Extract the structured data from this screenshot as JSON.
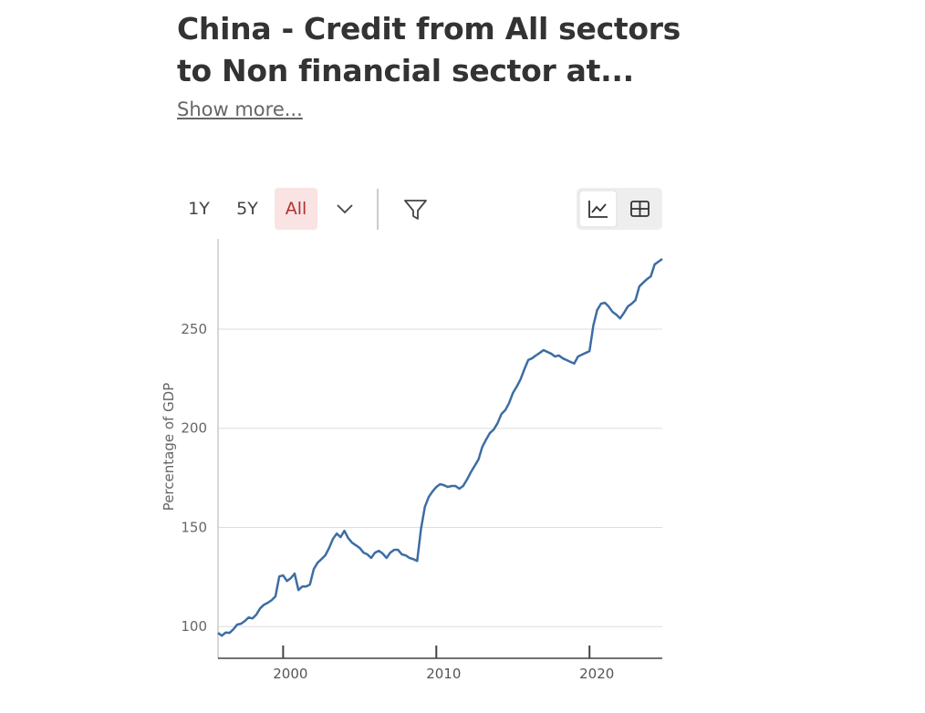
{
  "header": {
    "title_lines": [
      "China - Credit from All sectors",
      "to Non financial sector at..."
    ],
    "show_more": "Show more..."
  },
  "controls": {
    "ranges": [
      "1Y",
      "5Y",
      "All"
    ],
    "active_range": 2
  },
  "chart_data": {
    "type": "line",
    "y_label": "Percentage of GDP",
    "color": "#3d6da4",
    "grid": true,
    "xlim": [
      1995.75,
      2024.75
    ],
    "xticks": [
      2000,
      2010,
      2020
    ],
    "ylim": [
      84,
      295.5
    ],
    "yticks": [
      100,
      150,
      200,
      250
    ],
    "x": [
      1995.75,
      1996,
      1996.25,
      1996.5,
      1996.75,
      1997,
      1997.25,
      1997.5,
      1997.75,
      1998,
      1998.25,
      1998.5,
      1998.75,
      1999,
      1999.25,
      1999.5,
      1999.75,
      2000,
      2000.25,
      2000.5,
      2000.75,
      2001,
      2001.25,
      2001.5,
      2001.75,
      2002,
      2002.25,
      2002.5,
      2002.75,
      2003,
      2003.25,
      2003.5,
      2003.75,
      2004,
      2004.25,
      2004.5,
      2004.75,
      2005,
      2005.25,
      2005.5,
      2005.75,
      2006,
      2006.25,
      2006.5,
      2006.75,
      2007,
      2007.25,
      2007.5,
      2007.75,
      2008,
      2008.25,
      2008.5,
      2008.75,
      2009,
      2009.25,
      2009.5,
      2009.75,
      2010,
      2010.25,
      2010.5,
      2010.75,
      2011,
      2011.25,
      2011.5,
      2011.75,
      2012,
      2012.25,
      2012.5,
      2012.75,
      2013,
      2013.25,
      2013.5,
      2013.75,
      2014,
      2014.25,
      2014.5,
      2014.75,
      2015,
      2015.25,
      2015.5,
      2015.75,
      2016,
      2016.25,
      2016.5,
      2016.75,
      2017,
      2017.25,
      2017.5,
      2017.75,
      2018,
      2018.25,
      2018.5,
      2018.75,
      2019,
      2019.25,
      2019.5,
      2019.75,
      2020,
      2020.25,
      2020.5,
      2020.75,
      2021,
      2021.25,
      2021.5,
      2021.75,
      2022,
      2022.25,
      2022.5,
      2022.75,
      2023,
      2023.25,
      2023.5,
      2023.75,
      2024,
      2024.25,
      2024.5,
      2024.75
    ],
    "values": [
      96.8,
      95.4,
      97,
      96.8,
      98.6,
      101,
      101.4,
      102.8,
      104.6,
      104.1,
      106,
      109.2,
      111,
      112,
      113.3,
      115.2,
      125.3,
      125.8,
      123,
      124.4,
      126.7,
      118.4,
      120.2,
      120.2,
      121.2,
      129,
      132.2,
      134,
      135.9,
      139.6,
      144.2,
      146.9,
      145.1,
      148.3,
      144.6,
      142.3,
      141,
      139.6,
      137.3,
      136.4,
      134.6,
      137.3,
      138.2,
      136.8,
      134.6,
      137.3,
      138.7,
      138.7,
      136.4,
      135.9,
      134.6,
      134,
      133.1,
      149.2,
      160.3,
      165.3,
      168.1,
      170.4,
      171.8,
      171.3,
      170.4,
      170.9,
      170.9,
      169.5,
      170.9,
      174.1,
      177.8,
      181,
      184.2,
      190.6,
      194.3,
      197.6,
      199.4,
      202.6,
      207.2,
      209.1,
      212.7,
      217.8,
      221,
      224.7,
      229.8,
      234.4,
      235.3,
      236.7,
      238,
      239.4,
      238.5,
      237.6,
      236.2,
      236.7,
      235.3,
      234.4,
      233.5,
      232.6,
      236.2,
      237.1,
      238,
      238.9,
      251.8,
      259.6,
      262.8,
      263.3,
      261.4,
      258.7,
      257.3,
      255.4,
      258.2,
      261.4,
      262.8,
      264.6,
      271.5,
      273.4,
      275.2,
      276.6,
      282.6,
      284,
      285.4
    ]
  }
}
